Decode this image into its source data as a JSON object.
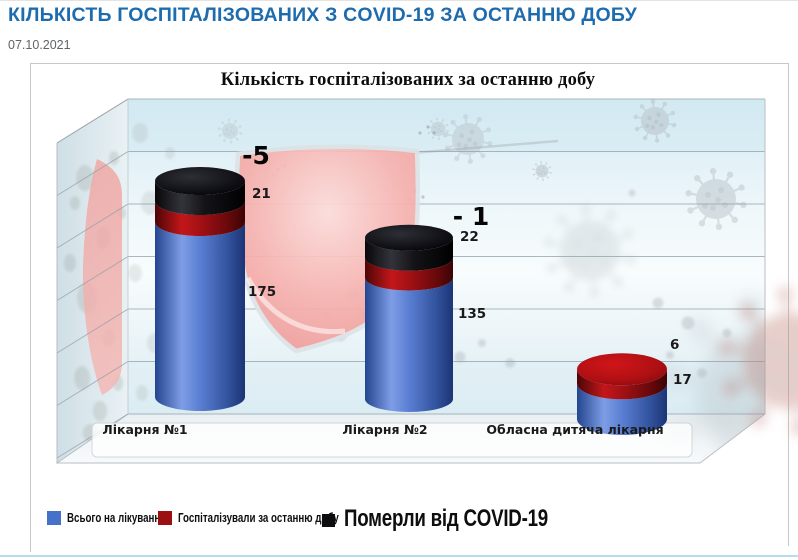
{
  "header": {
    "title": "КІЛЬКІСТЬ ГОСПІТАЛІЗОВАНИХ З COVID-19 ЗА ОСТАННЮ ДОБУ",
    "date": "07.10.2021"
  },
  "chart_data": {
    "type": "bar",
    "variant": "3d-stacked-cylinder",
    "title": "Кількість госпіталізованих за останню добу",
    "categories": [
      "Лікарня №1",
      "Лікарня №2",
      "Обласна дитяча лікарня"
    ],
    "series": [
      {
        "name": "Всього на лікуванні",
        "color": "#4472c8",
        "values": [
          175,
          135,
          17
        ]
      },
      {
        "name": "Госпіталізували за останню добу",
        "color": "#9b1013",
        "values": [
          21,
          22,
          6
        ]
      },
      {
        "name": "Померли від COVID-19",
        "color": "#0d0d10",
        "values": [
          5,
          1,
          0
        ]
      }
    ],
    "bars": [
      {
        "category": "Лікарня №1",
        "in_treatment": "175",
        "hospitalized_24h": "21",
        "died": "-5"
      },
      {
        "category": "Лікарня №2",
        "in_treatment": "135",
        "hospitalized_24h": "22",
        "died": "- 1"
      },
      {
        "category": "Обласна дитяча лікарня",
        "in_treatment": "17",
        "hospitalized_24h": "6",
        "died": ""
      }
    ],
    "legend_position": "bottom",
    "gridlines": true,
    "y_axis_labels_visible": false,
    "background_theme": "light blue wall with gray coronavirus silhouettes and a red shield"
  },
  "colors": {
    "header_title": "#1e6cae",
    "bar_blue": "#4472c8",
    "bar_red": "#9b1013",
    "bar_black": "#0d0d10",
    "shield_pink": "#f2a19e"
  }
}
